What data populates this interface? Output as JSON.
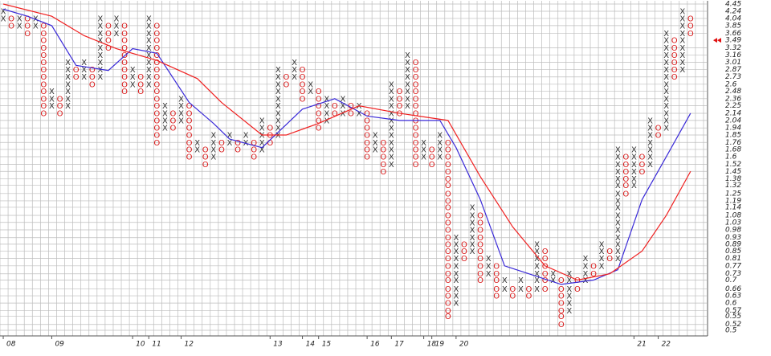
{
  "chart_data": {
    "type": "point-and-figure",
    "log_scale": true,
    "grid": true,
    "ylim": [
      0.5,
      4.45
    ],
    "yticks": [
      4.45,
      4.24,
      4.04,
      3.85,
      3.66,
      3.32,
      3.16,
      3.01,
      2.87,
      2.73,
      2.6,
      2.48,
      2.36,
      2.25,
      2.14,
      2.04,
      1.94,
      1.85,
      1.76,
      1.68,
      1.6,
      1.52,
      1.45,
      1.38,
      1.32,
      1.25,
      1.19,
      1.14,
      1.08,
      1.03,
      0.98,
      0.93,
      0.89,
      0.85,
      0.81,
      0.77,
      0.73,
      0.7,
      0.66,
      0.63,
      0.6,
      0.57,
      0.55,
      0.52,
      0.5
    ],
    "last_price": 3.49,
    "last_price_color": "#e01010",
    "xlim": [
      -0.4,
      87
    ],
    "xticks": [
      {
        "value": 0,
        "label": "08"
      },
      {
        "value": 6,
        "label": "09"
      },
      {
        "value": 16,
        "label": "10"
      },
      {
        "value": 18,
        "label": "11"
      },
      {
        "value": 22,
        "label": "12"
      },
      {
        "value": 33,
        "label": "13"
      },
      {
        "value": 37,
        "label": "14"
      },
      {
        "value": 39,
        "label": "15"
      },
      {
        "value": 45,
        "label": "16"
      },
      {
        "value": 48,
        "label": "17"
      },
      {
        "value": 52,
        "label": "18"
      },
      {
        "value": 53,
        "label": "19"
      },
      {
        "value": 56,
        "label": "20"
      },
      {
        "value": 78,
        "label": "21"
      },
      {
        "value": 81,
        "label": "22"
      }
    ],
    "x_color": "#333333",
    "o_color": "#d81818",
    "columns": [
      {
        "kind": "X",
        "low": 4.04,
        "high": 4.24
      },
      {
        "kind": "O",
        "low": 3.85,
        "high": 4.04
      },
      {
        "kind": "X",
        "low": 3.85,
        "high": 4.04
      },
      {
        "kind": "O",
        "low": 3.66,
        "high": 4.04
      },
      {
        "kind": "X",
        "low": 3.85,
        "high": 4.04
      },
      {
        "kind": "O",
        "low": 2.14,
        "high": 3.85
      },
      {
        "kind": "X",
        "low": 2.25,
        "high": 2.48
      },
      {
        "kind": "O",
        "low": 2.14,
        "high": 2.36
      },
      {
        "kind": "X",
        "low": 2.25,
        "high": 3.01
      },
      {
        "kind": "O",
        "low": 2.73,
        "high": 2.87
      },
      {
        "kind": "X",
        "low": 2.73,
        "high": 3.01
      },
      {
        "kind": "O",
        "low": 2.6,
        "high": 2.87
      },
      {
        "kind": "X",
        "low": 2.73,
        "high": 4.04
      },
      {
        "kind": "O",
        "low": 3.32,
        "high": 3.85
      },
      {
        "kind": "X",
        "low": 3.66,
        "high": 4.04
      },
      {
        "kind": "O",
        "low": 2.48,
        "high": 3.85
      },
      {
        "kind": "X",
        "low": 2.6,
        "high": 2.87
      },
      {
        "kind": "O",
        "low": 2.48,
        "high": 2.73
      },
      {
        "kind": "X",
        "low": 2.6,
        "high": 4.04
      },
      {
        "kind": "O",
        "low": 1.76,
        "high": 3.85
      },
      {
        "kind": "X",
        "low": 1.94,
        "high": 2.25
      },
      {
        "kind": "O",
        "low": 1.94,
        "high": 2.14
      },
      {
        "kind": "X",
        "low": 2.04,
        "high": 2.36
      },
      {
        "kind": "O",
        "low": 1.6,
        "high": 2.25
      },
      {
        "kind": "X",
        "low": 1.68,
        "high": 1.76
      },
      {
        "kind": "O",
        "low": 1.52,
        "high": 1.68
      },
      {
        "kind": "X",
        "low": 1.6,
        "high": 1.85
      },
      {
        "kind": "O",
        "low": 1.68,
        "high": 1.76
      },
      {
        "kind": "X",
        "low": 1.76,
        "high": 1.85
      },
      {
        "kind": "O",
        "low": 1.68,
        "high": 1.76
      },
      {
        "kind": "X",
        "low": 1.76,
        "high": 1.85
      },
      {
        "kind": "O",
        "low": 1.6,
        "high": 1.76
      },
      {
        "kind": "X",
        "low": 1.68,
        "high": 2.04
      },
      {
        "kind": "O",
        "low": 1.76,
        "high": 1.94
      },
      {
        "kind": "X",
        "low": 1.85,
        "high": 2.87
      },
      {
        "kind": "O",
        "low": 2.6,
        "high": 2.73
      },
      {
        "kind": "X",
        "low": 2.73,
        "high": 3.01
      },
      {
        "kind": "O",
        "low": 2.36,
        "high": 2.87
      },
      {
        "kind": "X",
        "low": 2.48,
        "high": 2.6
      },
      {
        "kind": "O",
        "low": 1.94,
        "high": 2.48
      },
      {
        "kind": "X",
        "low": 2.04,
        "high": 2.36
      },
      {
        "kind": "O",
        "low": 2.14,
        "high": 2.25
      },
      {
        "kind": "X",
        "low": 2.14,
        "high": 2.36
      },
      {
        "kind": "O",
        "low": 2.14,
        "high": 2.25
      },
      {
        "kind": "X",
        "low": 2.14,
        "high": 2.25
      },
      {
        "kind": "O",
        "low": 1.6,
        "high": 2.14
      },
      {
        "kind": "X",
        "low": 1.68,
        "high": 1.85
      },
      {
        "kind": "O",
        "low": 1.45,
        "high": 1.76
      },
      {
        "kind": "X",
        "low": 1.52,
        "high": 2.6
      },
      {
        "kind": "O",
        "low": 2.14,
        "high": 2.48
      },
      {
        "kind": "X",
        "low": 2.25,
        "high": 3.16
      },
      {
        "kind": "O",
        "low": 1.52,
        "high": 3.01
      },
      {
        "kind": "X",
        "low": 1.6,
        "high": 1.76
      },
      {
        "kind": "O",
        "low": 1.52,
        "high": 1.68
      },
      {
        "kind": "X",
        "low": 1.6,
        "high": 1.85
      },
      {
        "kind": "O",
        "low": 0.55,
        "high": 1.76
      },
      {
        "kind": "X",
        "low": 0.6,
        "high": 0.93
      },
      {
        "kind": "O",
        "low": 0.81,
        "high": 0.89
      },
      {
        "kind": "X",
        "low": 0.85,
        "high": 1.14
      },
      {
        "kind": "O",
        "low": 0.7,
        "high": 1.08
      },
      {
        "kind": "X",
        "low": 0.73,
        "high": 0.81
      },
      {
        "kind": "O",
        "low": 0.63,
        "high": 0.77
      },
      {
        "kind": "X",
        "low": 0.66,
        "high": 0.7
      },
      {
        "kind": "O",
        "low": 0.63,
        "high": 0.66
      },
      {
        "kind": "X",
        "low": 0.66,
        "high": 0.7
      },
      {
        "kind": "O",
        "low": 0.63,
        "high": 0.66
      },
      {
        "kind": "X",
        "low": 0.66,
        "high": 0.89
      },
      {
        "kind": "O",
        "low": 0.66,
        "high": 0.85
      },
      {
        "kind": "X",
        "low": 0.7,
        "high": 0.73
      },
      {
        "kind": "O",
        "low": 0.52,
        "high": 0.7
      },
      {
        "kind": "X",
        "low": 0.57,
        "high": 0.73
      },
      {
        "kind": "O",
        "low": 0.66,
        "high": 0.7
      },
      {
        "kind": "X",
        "low": 0.7,
        "high": 0.81
      },
      {
        "kind": "O",
        "low": 0.73,
        "high": 0.77
      },
      {
        "kind": "X",
        "low": 0.77,
        "high": 0.89
      },
      {
        "kind": "O",
        "low": 0.81,
        "high": 0.85
      },
      {
        "kind": "X",
        "low": 0.81,
        "high": 1.68
      },
      {
        "kind": "O",
        "low": 1.25,
        "high": 1.6
      },
      {
        "kind": "X",
        "low": 1.32,
        "high": 1.68
      },
      {
        "kind": "O",
        "low": 1.45,
        "high": 1.6
      },
      {
        "kind": "X",
        "low": 1.52,
        "high": 2.04
      },
      {
        "kind": "O",
        "low": 1.85,
        "high": 1.94
      },
      {
        "kind": "X",
        "low": 1.94,
        "high": 3.66
      },
      {
        "kind": "O",
        "low": 2.73,
        "high": 3.49
      },
      {
        "kind": "X",
        "low": 2.87,
        "high": 4.24
      },
      {
        "kind": "O",
        "low": 3.66,
        "high": 4.04
      }
    ],
    "series": [
      {
        "color": "#3a2ad8",
        "x": [
          0,
          3,
          6,
          9,
          13,
          16,
          19,
          23,
          26,
          28,
          32,
          37,
          41,
          45,
          49,
          54,
          56,
          59,
          62,
          65,
          69,
          73,
          76,
          79,
          82,
          85
        ],
        "values": [
          4.3,
          4.1,
          3.85,
          2.95,
          2.85,
          3.3,
          3.2,
          2.3,
          2.0,
          1.8,
          1.7,
          2.2,
          2.36,
          2.1,
          2.04,
          2.04,
          1.7,
          1.2,
          0.77,
          0.73,
          0.68,
          0.7,
          0.75,
          1.2,
          1.6,
          2.14
        ]
      },
      {
        "color": "#f02020",
        "x": [
          0,
          6,
          10,
          14,
          19,
          24,
          27,
          32,
          35,
          39,
          44,
          49,
          55,
          59,
          63,
          67,
          71,
          75,
          79,
          82,
          85
        ],
        "values": [
          4.45,
          4.1,
          3.6,
          3.3,
          3.05,
          2.7,
          2.3,
          1.85,
          1.85,
          2.0,
          2.25,
          2.14,
          2.04,
          1.4,
          1.0,
          0.77,
          0.7,
          0.73,
          0.85,
          1.08,
          1.45
        ]
      }
    ]
  }
}
